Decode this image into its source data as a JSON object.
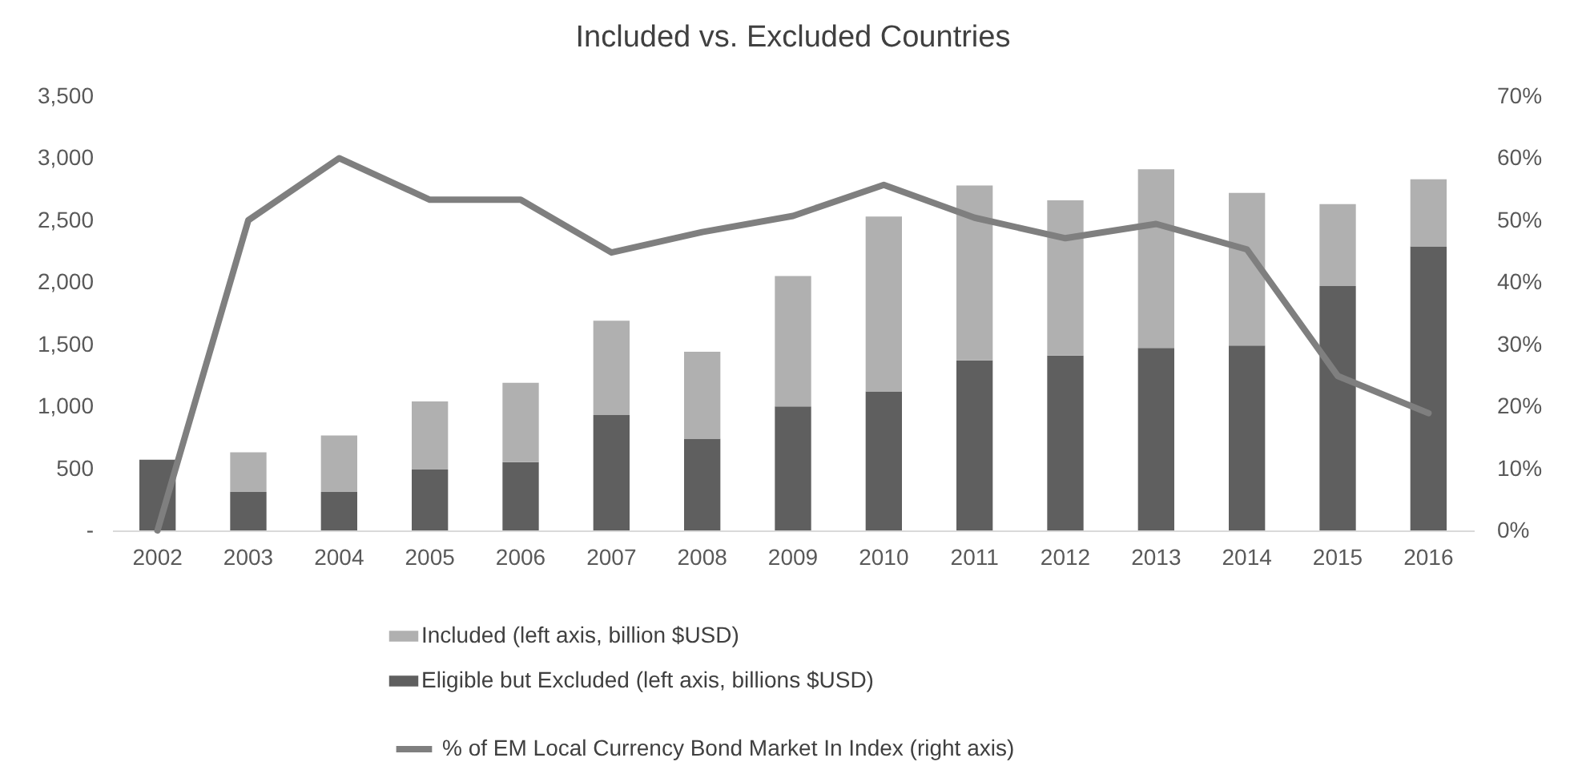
{
  "chart_data": {
    "type": "bar",
    "stacked": true,
    "title": "Included vs. Excluded Countries",
    "categories": [
      "2002",
      "2003",
      "2004",
      "2005",
      "2006",
      "2007",
      "2008",
      "2009",
      "2010",
      "2011",
      "2012",
      "2013",
      "2014",
      "2015",
      "2016"
    ],
    "series": [
      {
        "name": "Eligible but Excluded (left axis, billions $USD)",
        "color": "#5f5f5f",
        "values": [
          570,
          310,
          310,
          490,
          550,
          930,
          740,
          1000,
          1120,
          1370,
          1410,
          1470,
          1490,
          1970,
          2290
        ]
      },
      {
        "name": "Included (left axis, billion $USD)",
        "color": "#b0b0b0",
        "values": [
          0,
          320,
          455,
          550,
          640,
          760,
          700,
          1050,
          1410,
          1410,
          1250,
          1440,
          1230,
          660,
          540
        ]
      },
      {
        "name": "% of EM Local Currency Bond Market In Index (right axis)",
        "type": "line",
        "axis": "y2",
        "color": "#7f7f7f",
        "values": [
          0,
          50,
          60,
          53.3,
          53.3,
          44.8,
          48.1,
          50.7,
          55.7,
          50.4,
          47.1,
          49.4,
          45.3,
          24.9,
          18.9
        ]
      }
    ],
    "ylim": [
      0,
      3500
    ],
    "yticks": [
      {
        "value": 0,
        "label": "-"
      },
      {
        "value": 500,
        "label": "500"
      },
      {
        "value": 1000,
        "label": "1,000"
      },
      {
        "value": 1500,
        "label": "1,500"
      },
      {
        "value": 2000,
        "label": "2,000"
      },
      {
        "value": 2500,
        "label": "2,500"
      },
      {
        "value": 3000,
        "label": "3,000"
      },
      {
        "value": 3500,
        "label": "3,500"
      }
    ],
    "y2lim": [
      0,
      70
    ],
    "y2ticks": [
      {
        "value": 0,
        "label": "0%"
      },
      {
        "value": 10,
        "label": "10%"
      },
      {
        "value": 20,
        "label": "20%"
      },
      {
        "value": 30,
        "label": "30%"
      },
      {
        "value": 40,
        "label": "40%"
      },
      {
        "value": 50,
        "label": "50%"
      },
      {
        "value": 60,
        "label": "60%"
      },
      {
        "value": 70,
        "label": "70%"
      }
    ],
    "legend": "bottom"
  }
}
